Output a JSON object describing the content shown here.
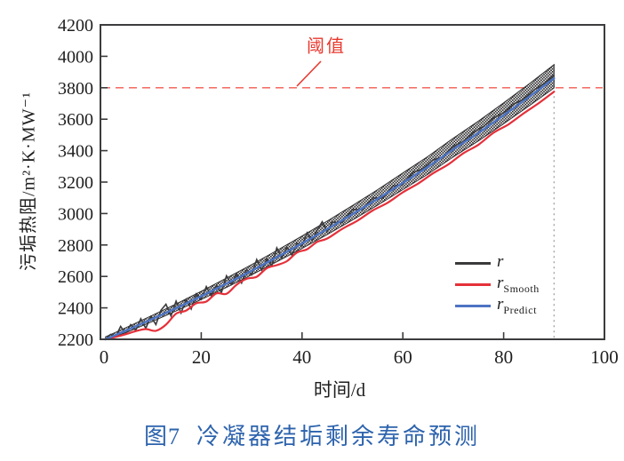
{
  "figure": {
    "caption_number": "图7",
    "caption_title": "冷凝器结垢剩余寿命预测",
    "caption_color": "#2d63ad"
  },
  "axes": {
    "xlabel": "时间/d",
    "ylabel": "污垢热阻/m²·K·MW⁻¹",
    "tick_color": "#1f1f1f",
    "box_color": "#3c3c3e"
  },
  "threshold_annotation": {
    "label": "阈值",
    "color": "#e8392f"
  },
  "legend": {
    "items": [
      {
        "main": "r",
        "sub": "",
        "color": "#3a3a3c"
      },
      {
        "main": "r",
        "sub": "Smooth",
        "color": "#e5303a"
      },
      {
        "main": "r",
        "sub": "Predict",
        "color": "#4d74c4"
      }
    ]
  },
  "chart_data": {
    "type": "line",
    "title": "",
    "xlabel": "时间/d",
    "ylabel": "污垢热阻/m²·K·MW⁻¹",
    "xlim": [
      0,
      100
    ],
    "ylim": [
      2200,
      4200
    ],
    "xticks": [
      0,
      20,
      40,
      60,
      80,
      100
    ],
    "yticks": [
      2200,
      2400,
      2600,
      2800,
      3000,
      3200,
      3400,
      3600,
      3800,
      4000,
      4200
    ],
    "grid": false,
    "legend_position": "inside right-middle",
    "threshold": {
      "label": "阈值",
      "value": 3800,
      "color": "#f2594e",
      "style": "dashed"
    },
    "prediction_end_line": {
      "x": 90,
      "style": "dotted",
      "color": "#999999"
    },
    "band": {
      "name": "r-uncertainty-band",
      "fill": "black-white checker hatch",
      "points_top": [
        [
          1,
          2216
        ],
        [
          5,
          2273
        ],
        [
          10,
          2348
        ],
        [
          15,
          2425
        ],
        [
          20,
          2505
        ],
        [
          25,
          2589
        ],
        [
          30,
          2675
        ],
        [
          35,
          2765
        ],
        [
          40,
          2857
        ],
        [
          45,
          2952
        ],
        [
          50,
          3051
        ],
        [
          55,
          3152
        ],
        [
          60,
          3258
        ],
        [
          65,
          3364
        ],
        [
          70,
          3479
        ],
        [
          75,
          3588
        ],
        [
          80,
          3704
        ],
        [
          85,
          3824
        ],
        [
          90,
          3947
        ]
      ],
      "points_bottom": [
        [
          1,
          2200
        ],
        [
          5,
          2241
        ],
        [
          10,
          2309
        ],
        [
          15,
          2380
        ],
        [
          20,
          2453
        ],
        [
          25,
          2530
        ],
        [
          30,
          2610
        ],
        [
          35,
          2693
        ],
        [
          40,
          2778
        ],
        [
          45,
          2866
        ],
        [
          50,
          2959
        ],
        [
          55,
          3053
        ],
        [
          60,
          3152
        ],
        [
          65,
          3251
        ],
        [
          70,
          3360
        ],
        [
          75,
          3462
        ],
        [
          80,
          3571
        ],
        [
          85,
          3684
        ],
        [
          90,
          3799
        ]
      ]
    },
    "series": [
      {
        "name": "r",
        "color": "#3a3a3c",
        "style": "noisy",
        "points": [
          [
            1,
            2200
          ],
          [
            2,
            2231
          ],
          [
            3,
            2215
          ],
          [
            4,
            2282
          ],
          [
            5,
            2236
          ],
          [
            6,
            2293
          ],
          [
            7,
            2257
          ],
          [
            8,
            2331
          ],
          [
            9,
            2270
          ],
          [
            10,
            2345
          ],
          [
            11,
            2294
          ],
          [
            12,
            2384
          ],
          [
            13,
            2423
          ],
          [
            14,
            2348
          ],
          [
            15,
            2443
          ],
          [
            16,
            2368
          ],
          [
            17,
            2453
          ],
          [
            18,
            2393
          ],
          [
            19,
            2489
          ],
          [
            20,
            2454
          ],
          [
            21,
            2535
          ],
          [
            22,
            2476
          ],
          [
            23,
            2542
          ],
          [
            24,
            2498
          ],
          [
            25,
            2604
          ],
          [
            26,
            2550
          ],
          [
            27,
            2617
          ],
          [
            28,
            2558
          ],
          [
            29,
            2645
          ],
          [
            30,
            2611
          ],
          [
            31,
            2708
          ],
          [
            32,
            2640
          ],
          [
            33,
            2712
          ],
          [
            34,
            2669
          ],
          [
            35,
            2782
          ],
          [
            36,
            2719
          ],
          [
            37,
            2787
          ],
          [
            38,
            2734
          ],
          [
            39,
            2812
          ],
          [
            40,
            2795
          ],
          [
            41,
            2878
          ],
          [
            42,
            2827
          ],
          [
            43,
            2895
          ],
          [
            44,
            2948
          ],
          [
            45,
            2886
          ],
          [
            46,
            2945
          ],
          [
            48,
            2943
          ],
          [
            50,
            3026
          ],
          [
            52,
            3025
          ],
          [
            54,
            3099
          ],
          [
            56,
            3099
          ],
          [
            58,
            3174
          ],
          [
            60,
            3185
          ],
          [
            62,
            3262
          ],
          [
            64,
            3284
          ],
          [
            66,
            3341
          ],
          [
            68,
            3360
          ],
          [
            70,
            3428
          ],
          [
            72,
            3458
          ],
          [
            74,
            3517
          ],
          [
            76,
            3553
          ],
          [
            78,
            3609
          ],
          [
            80,
            3640
          ],
          [
            82,
            3696
          ],
          [
            84,
            3728
          ],
          [
            86,
            3785
          ],
          [
            88,
            3826
          ],
          [
            90,
            3880
          ]
        ]
      },
      {
        "name": "r_Smooth",
        "color": "#e5303a",
        "style": "smooth",
        "points": [
          [
            1,
            2200
          ],
          [
            3,
            2215
          ],
          [
            5,
            2232
          ],
          [
            7,
            2252
          ],
          [
            9,
            2265
          ],
          [
            11,
            2254
          ],
          [
            13,
            2293
          ],
          [
            15,
            2363
          ],
          [
            17,
            2383
          ],
          [
            19,
            2429
          ],
          [
            21,
            2440
          ],
          [
            23,
            2492
          ],
          [
            25,
            2489
          ],
          [
            27,
            2547
          ],
          [
            29,
            2585
          ],
          [
            31,
            2598
          ],
          [
            33,
            2652
          ],
          [
            35,
            2672
          ],
          [
            37,
            2697
          ],
          [
            39,
            2752
          ],
          [
            41,
            2773
          ],
          [
            43,
            2820
          ],
          [
            45,
            2841
          ],
          [
            48,
            2903
          ],
          [
            51,
            2955
          ],
          [
            54,
            3019
          ],
          [
            57,
            3069
          ],
          [
            60,
            3135
          ],
          [
            63,
            3190
          ],
          [
            66,
            3256
          ],
          [
            69,
            3312
          ],
          [
            72,
            3383
          ],
          [
            75,
            3438
          ],
          [
            78,
            3514
          ],
          [
            81,
            3568
          ],
          [
            84,
            3638
          ],
          [
            87,
            3703
          ],
          [
            90,
            3775
          ]
        ]
      },
      {
        "name": "r_Predict",
        "color": "#4d74c4",
        "style": "smooth",
        "points": [
          [
            1,
            2200
          ],
          [
            5,
            2254
          ],
          [
            10,
            2325
          ],
          [
            15,
            2398
          ],
          [
            20,
            2474
          ],
          [
            25,
            2554
          ],
          [
            30,
            2636
          ],
          [
            35,
            2722
          ],
          [
            40,
            2810
          ],
          [
            45,
            2901
          ],
          [
            50,
            2996
          ],
          [
            55,
            3093
          ],
          [
            60,
            3195
          ],
          [
            65,
            3297
          ],
          [
            70,
            3408
          ],
          [
            75,
            3513
          ],
          [
            80,
            3625
          ],
          [
            85,
            3741
          ],
          [
            90,
            3860
          ]
        ]
      }
    ]
  }
}
